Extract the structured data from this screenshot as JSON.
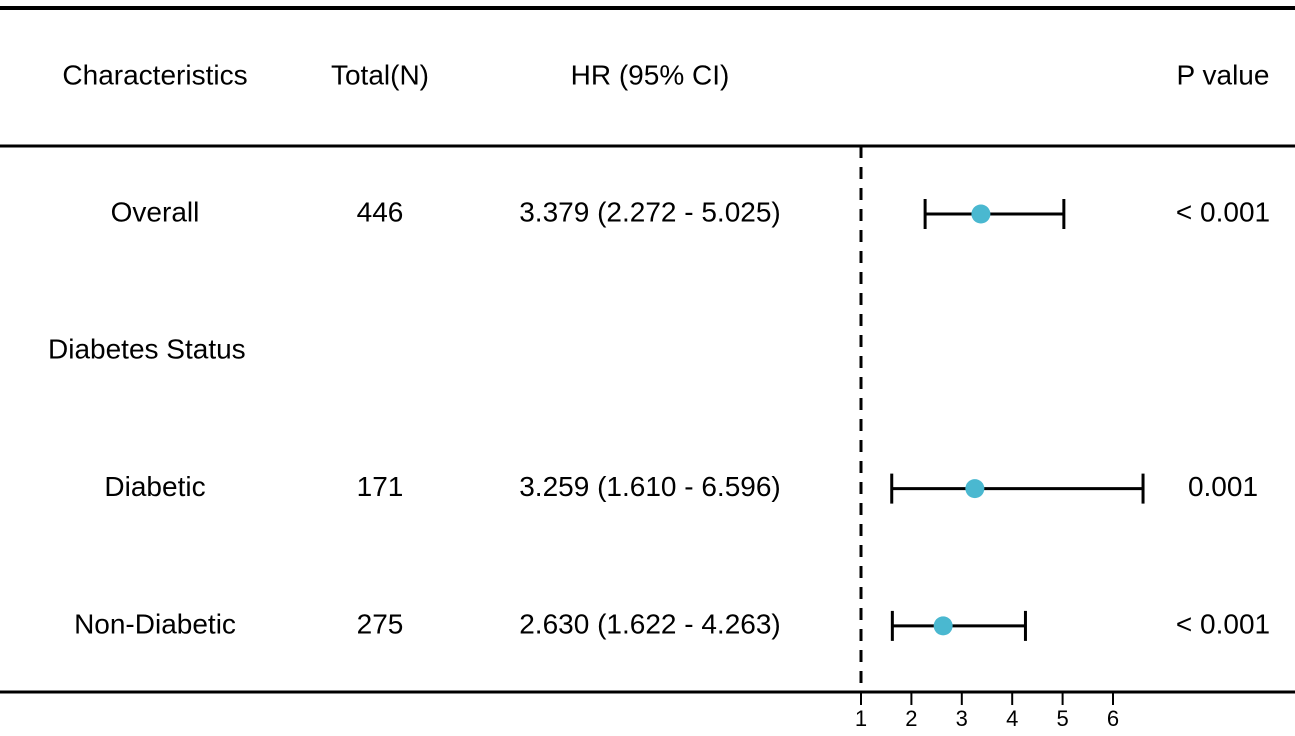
{
  "chart_data": {
    "type": "forest",
    "columns": [
      "Characteristics",
      "Total(N)",
      "HR (95% CI)",
      "P value"
    ],
    "rows": [
      "Overall",
      "Diabetes Status",
      "Diabetic",
      "Non-Diabetic"
    ],
    "totals": [
      446,
      null,
      171,
      275
    ],
    "series": [
      {
        "color": "#4ab8d0",
        "values": [
          3.379,
          null,
          3.259,
          2.63
        ],
        "lower": [
          2.272,
          null,
          1.61,
          1.622
        ],
        "upper": [
          5.025,
          null,
          6.596,
          4.263
        ],
        "value_labels": [
          "3.379 (2.272 - 5.025)",
          null,
          "3.259 (1.610 - 6.596)",
          "2.630 (1.622 - 4.263)"
        ]
      }
    ],
    "p_values": [
      "< 0.001",
      null,
      "0.001",
      "< 0.001"
    ],
    "reference": 1,
    "xlim": [
      1,
      6
    ],
    "xticks": [
      1,
      2,
      3,
      4,
      5,
      6
    ]
  }
}
